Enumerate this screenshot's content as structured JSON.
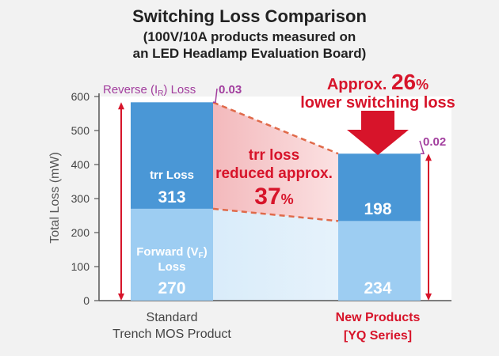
{
  "title": "Switching Loss Comparison",
  "subtitle_line1": "(100V/10A products measured on",
  "subtitle_line2": "an LED Headlamp Evaluation Board)",
  "chart_data": {
    "type": "bar",
    "stacked": true,
    "ylabel": "Total Loss (mW)",
    "ylim": [
      0,
      600
    ],
    "yticks": [
      0,
      100,
      200,
      300,
      400,
      500,
      600
    ],
    "categories": [
      {
        "line1": "Standard",
        "line2": "Trench MOS Product"
      },
      {
        "line1": "New Products",
        "line2": "[YQ Series]"
      }
    ],
    "series": [
      {
        "name": "Forward (VF) Loss",
        "values": [
          270,
          234
        ],
        "labels": [
          "270",
          "234"
        ]
      },
      {
        "name": "trr Loss",
        "values": [
          313,
          198
        ],
        "labels": [
          "313",
          "198"
        ]
      },
      {
        "name": "Reverse (IR) Loss",
        "values": [
          0.03,
          0.02
        ],
        "labels": [
          "0.03",
          "0.02"
        ]
      }
    ],
    "colors": {
      "forward": "#9dcdf2",
      "trr": "#4a97d6",
      "accent": "#d7142a",
      "magenta": "#a23e9e",
      "axis": "#555555"
    }
  },
  "labels": {
    "reverse_loss_prefix": "Reverse (I",
    "reverse_loss_sub": "R",
    "reverse_loss_suffix": ") Loss",
    "trr_loss": "trr Loss",
    "forward_line1_prefix": "Forward (V",
    "forward_line1_sub": "F",
    "forward_line1_suffix": ")",
    "forward_line2": "Loss",
    "trr_reduced_line1": "trr loss",
    "trr_reduced_line2": "reduced approx.",
    "trr_reduced_value": "37",
    "percent_sign": "%",
    "approx_prefix": "Approx. ",
    "approx_value": "26",
    "approx_line2": "lower switching loss"
  }
}
